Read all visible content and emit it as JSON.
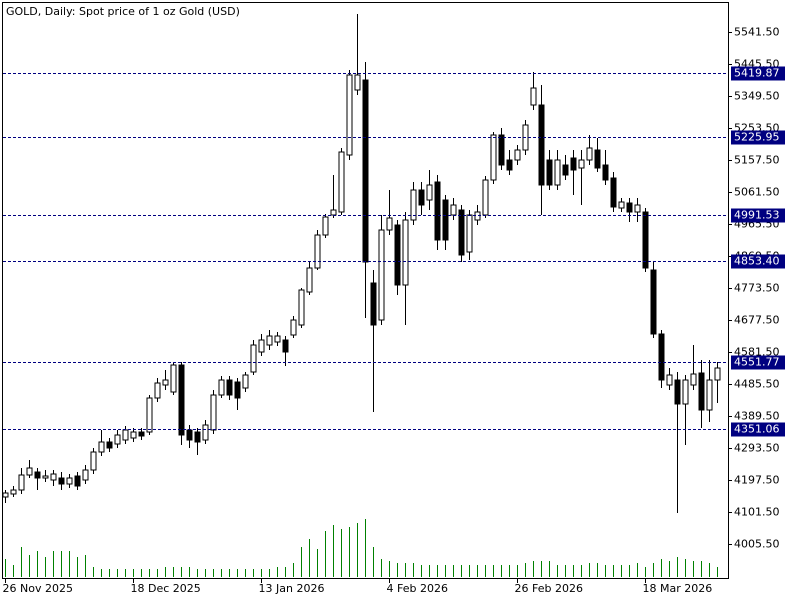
{
  "chart_data": {
    "type": "candlestick",
    "title": "GOLD, Daily:  Spot price of 1 oz Gold (USD)",
    "categories": [
      "26 Nov 2025",
      null,
      null,
      null,
      null,
      null,
      null,
      null,
      null,
      null,
      null,
      null,
      null,
      null,
      null,
      null,
      "18 Dec 2025",
      null,
      null,
      null,
      null,
      null,
      null,
      null,
      null,
      null,
      null,
      null,
      null,
      null,
      null,
      null,
      "13 Jan 2026",
      null,
      null,
      null,
      null,
      null,
      null,
      null,
      null,
      null,
      null,
      null,
      null,
      null,
      null,
      null,
      "4 Feb 2026",
      null,
      null,
      null,
      null,
      null,
      null,
      null,
      null,
      null,
      null,
      null,
      null,
      null,
      null,
      null,
      "26 Feb 2026",
      null,
      null,
      null,
      null,
      null,
      null,
      null,
      null,
      null,
      null,
      null,
      null,
      null,
      null,
      null,
      "18 Mar 2026",
      null,
      null,
      null,
      null,
      null,
      null,
      null,
      null,
      null
    ],
    "open": [
      4146.5,
      4155.5,
      4167.5,
      4212.5,
      4221.5,
      4203.5,
      4197.5,
      4203.5,
      4185.5,
      4209.5,
      4197.5,
      4227.5,
      4281.5,
      4311.5,
      4305.5,
      4317.5,
      4323.5,
      4341.5,
      4341.5,
      4443.5,
      4482.5,
      4461.5,
      4542.5,
      4347.5,
      4341.5,
      4317.5,
      4347.5,
      4452.5,
      4497.5,
      4491.5,
      4473.5,
      4521.5,
      4581.5,
      4602.5,
      4611.5,
      4617.5,
      4632.5,
      4662.5,
      4761.5,
      4833.5,
      4932.5,
      4992.5,
      5001.5,
      5172.5,
      5367.5,
      5397.5,
      4788.5,
      4677.5,
      4947.5,
      4962.5,
      4782.5,
      4977.5,
      5067.5,
      5037.5,
      5091.5,
      5037.5,
      4992.5,
      5007.5,
      4881.5,
      4977.5,
      4992.5,
      5097.5,
      5232.5,
      5157.5,
      5157.5,
      5187.5,
      5322.5,
      5322.5,
      5157.5,
      5082.5,
      5142.5,
      5163.5,
      5133.5,
      5157.5,
      5187.5,
      5142.5,
      5103.5,
      5013.5,
      5028.5,
      5001.5,
      5001.5,
      4827.5,
      4635.5,
      4482.5,
      4497.5,
      4425.5,
      4482.5,
      4518.5,
      4407.5,
      4497.5
    ],
    "high": [
      4167.5,
      4179.5,
      4233.5,
      4257.5,
      4233.5,
      4227.5,
      4227.5,
      4221.5,
      4215.5,
      4221.5,
      4242.5,
      4293.5,
      4347.5,
      4323.5,
      4347.5,
      4359.5,
      4353.5,
      4353.5,
      4452.5,
      4503.5,
      4527.5,
      4551.5,
      4551.5,
      4362.5,
      4353.5,
      4377.5,
      4467.5,
      4509.5,
      4509.5,
      4503.5,
      4521.5,
      4617.5,
      4635.5,
      4647.5,
      4641.5,
      4629.5,
      4689.5,
      4773.5,
      4851.5,
      4947.5,
      4995.5,
      5112.5,
      5193.5,
      5427.5,
      5595.5,
      5451.5,
      4827.5,
      4992.5,
      5067.5,
      4977.5,
      5001.5,
      5091.5,
      5091.5,
      5127.5,
      5112.5,
      5052.5,
      5043.5,
      5022.5,
      5007.5,
      5022.5,
      5109.5,
      5241.5,
      5253.5,
      5187.5,
      5202.5,
      5277.5,
      5421.5,
      5382.5,
      5187.5,
      5187.5,
      5172.5,
      5187.5,
      5187.5,
      5232.5,
      5223.5,
      5187.5,
      5121.5,
      5043.5,
      5043.5,
      5043.5,
      5013.5,
      4851.5,
      4647.5,
      4533.5,
      4521.5,
      4512.5,
      4602.5,
      4557.5,
      4557.5,
      4551.5
    ],
    "low": [
      4128.5,
      4146.5,
      4155.5,
      4203.5,
      4167.5,
      4191.5,
      4179.5,
      4167.5,
      4173.5,
      4167.5,
      4185.5,
      4215.5,
      4269.5,
      4281.5,
      4293.5,
      4305.5,
      4311.5,
      4317.5,
      4332.5,
      4431.5,
      4467.5,
      4452.5,
      4302.5,
      4293.5,
      4272.5,
      4305.5,
      4335.5,
      4443.5,
      4437.5,
      4407.5,
      4461.5,
      4512.5,
      4569.5,
      4587.5,
      4599.5,
      4539.5,
      4623.5,
      4653.5,
      4752.5,
      4827.5,
      4923.5,
      4983.5,
      4992.5,
      5157.5,
      5352.5,
      4683.5,
      4401.5,
      4662.5,
      4932.5,
      4752.5,
      4662.5,
      4962.5,
      4992.5,
      5007.5,
      4887.5,
      4887.5,
      4977.5,
      4851.5,
      4857.5,
      4962.5,
      4983.5,
      5085.5,
      5127.5,
      5112.5,
      5142.5,
      5172.5,
      5307.5,
      4992.5,
      5067.5,
      5067.5,
      5097.5,
      5052.5,
      5022.5,
      5142.5,
      5121.5,
      5082.5,
      5001.5,
      5001.5,
      4971.5,
      4971.5,
      4821.5,
      4623.5,
      4473.5,
      4467.5,
      4098.5,
      4302.5,
      4467.5,
      4353.5,
      4371.5,
      4428.5
    ],
    "close": [
      4158.5,
      4167.5,
      4212.5,
      4233.5,
      4203.5,
      4209.5,
      4215.5,
      4185.5,
      4203.5,
      4179.5,
      4227.5,
      4281.5,
      4311.5,
      4293.5,
      4332.5,
      4347.5,
      4341.5,
      4329.5,
      4443.5,
      4488.5,
      4497.5,
      4542.5,
      4332.5,
      4317.5,
      4311.5,
      4362.5,
      4452.5,
      4497.5,
      4452.5,
      4443.5,
      4512.5,
      4602.5,
      4617.5,
      4629.5,
      4629.5,
      4581.5,
      4677.5,
      4767.5,
      4833.5,
      4932.5,
      4986.5,
      5007.5,
      5181.5,
      5412.5,
      5412.5,
      4851.5,
      4662.5,
      4947.5,
      4983.5,
      4782.5,
      4977.5,
      5067.5,
      5022.5,
      5082.5,
      4917.5,
      4917.5,
      5022.5,
      4872.5,
      4992.5,
      5001.5,
      5097.5,
      5232.5,
      5142.5,
      5127.5,
      5187.5,
      5262.5,
      5373.5,
      5082.5,
      5082.5,
      5157.5,
      5112.5,
      5127.5,
      5157.5,
      5193.5,
      5133.5,
      5097.5,
      5016.5,
      5031.5,
      5001.5,
      5022.5,
      4833.5,
      4635.5,
      4497.5,
      4512.5,
      4425.5,
      4497.5,
      4515.5,
      4407.5,
      4497.5,
      4533.5
    ],
    "volume": [
      18,
      12,
      30,
      22,
      26,
      20,
      26,
      26,
      26,
      20,
      22,
      10,
      8,
      8,
      8,
      8,
      8,
      8,
      8,
      8,
      10,
      10,
      10,
      10,
      8,
      8,
      8,
      8,
      8,
      8,
      8,
      8,
      8,
      8,
      10,
      10,
      14,
      30,
      38,
      28,
      46,
      52,
      48,
      50,
      54,
      58,
      30,
      18,
      16,
      14,
      14,
      14,
      12,
      12,
      12,
      12,
      12,
      12,
      12,
      12,
      12,
      12,
      12,
      12,
      12,
      14,
      16,
      16,
      16,
      12,
      12,
      12,
      12,
      14,
      14,
      12,
      12,
      12,
      12,
      14,
      10,
      14,
      18,
      16,
      20,
      18,
      16,
      16,
      14,
      10
    ],
    "volume_color": "#008000",
    "levels": [
      5419.87,
      5225.95,
      4991.53,
      {
        "value": 4853.4,
        "label": "4853.40"
      },
      4551.77,
      4351.06
    ],
    "level_color": "#000080",
    "ylim": [
      3903.5,
      5631.5
    ],
    "yticks": [
      {
        "value": 5541.5,
        "label": "5541.50"
      },
      {
        "value": 5445.5,
        "label": "5445.50"
      },
      {
        "value": 5349.5,
        "label": "5349.50"
      },
      {
        "value": 5253.5,
        "label": "5253.50"
      },
      {
        "value": 5157.5,
        "label": "5157.50"
      },
      {
        "value": 5061.5,
        "label": "5061.50"
      },
      {
        "value": 4965.5,
        "label": "4965.50"
      },
      {
        "value": 4869.5,
        "label": "4869.50"
      },
      {
        "value": 4773.5,
        "label": "4773.50"
      },
      {
        "value": 4677.5,
        "label": "4677.50"
      },
      {
        "value": 4581.5,
        "label": "4581.50"
      },
      {
        "value": 4485.5,
        "label": "4485.50"
      },
      {
        "value": 4389.5,
        "label": "4389.50"
      },
      {
        "value": 4293.5,
        "label": "4293.50"
      },
      {
        "value": 4197.5,
        "label": "4197.50"
      },
      {
        "value": 4101.5,
        "label": "4101.50"
      },
      {
        "value": 4005.5,
        "label": "4005.50"
      }
    ],
    "up_color": "#ffffff",
    "down_color": "#000000"
  }
}
